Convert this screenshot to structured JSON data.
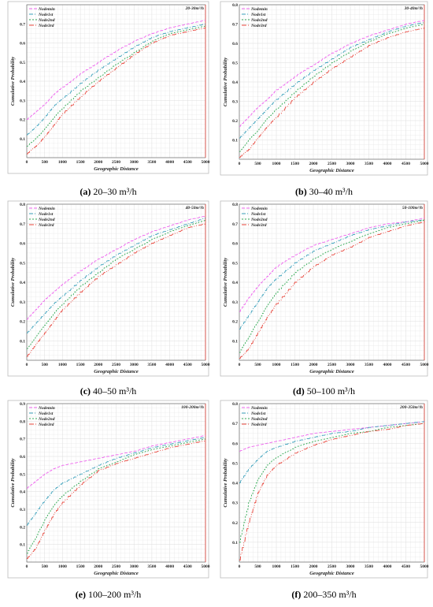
{
  "colors": {
    "Nodemin": "#ee66ee",
    "Node1st": "#3aa0bb",
    "Node2nd": "#33aa55",
    "Node3rd": "#e8443a",
    "grid": "#dddddd"
  },
  "chart_data": [
    {
      "type": "line",
      "title": "20-30m³/h",
      "caption_bold": "(a)",
      "caption_rest": " 20–30 m³/h",
      "xlabel": "Geographic Distance",
      "ylabel": "Cumulative Probability",
      "xlim": [
        0,
        5000
      ],
      "ylim": [
        0,
        0.8
      ],
      "xticks": [
        "0",
        "500",
        "1000",
        "1500",
        "2000",
        "2500",
        "3000",
        "3500",
        "4000",
        "4500",
        "5000"
      ],
      "yticks": [
        "0.1",
        "0.2",
        "0.3",
        "0.4",
        "0.5",
        "0.6",
        "0.7"
      ],
      "legend_position": "top-left",
      "grid": true,
      "x": [
        0,
        250,
        500,
        750,
        1000,
        1500,
        2000,
        2500,
        3000,
        3500,
        4000,
        4500,
        5000
      ],
      "series": [
        {
          "name": "Nodemin",
          "values": [
            0.2,
            0.24,
            0.28,
            0.33,
            0.37,
            0.44,
            0.5,
            0.56,
            0.61,
            0.65,
            0.68,
            0.7,
            0.72
          ]
        },
        {
          "name": "Node1st",
          "values": [
            0.12,
            0.16,
            0.21,
            0.27,
            0.31,
            0.39,
            0.46,
            0.52,
            0.58,
            0.63,
            0.66,
            0.68,
            0.7
          ]
        },
        {
          "name": "Node2nd",
          "values": [
            0.06,
            0.1,
            0.15,
            0.21,
            0.26,
            0.35,
            0.42,
            0.49,
            0.55,
            0.61,
            0.65,
            0.67,
            0.69
          ]
        },
        {
          "name": "Node3rd",
          "values": [
            0.02,
            0.06,
            0.11,
            0.17,
            0.23,
            0.32,
            0.4,
            0.47,
            0.54,
            0.6,
            0.64,
            0.66,
            0.68
          ]
        }
      ]
    },
    {
      "type": "line",
      "title": "30-40m³/h",
      "caption_bold": "(b)",
      "caption_rest": " 30–40 m³/h",
      "xlabel": "Geographic Distance",
      "ylabel": "Cumulative Probability",
      "xlim": [
        0,
        5000
      ],
      "ylim": [
        0,
        0.8
      ],
      "xticks": [
        "0",
        "500",
        "1000",
        "1500",
        "2000",
        "2500",
        "3000",
        "3500",
        "4000",
        "4500",
        "5000"
      ],
      "yticks": [
        "0.1",
        "0.2",
        "0.3",
        "0.4",
        "0.5",
        "0.6",
        "0.7",
        "0.8"
      ],
      "legend_position": "top-left",
      "grid": true,
      "x": [
        0,
        250,
        500,
        750,
        1000,
        1500,
        2000,
        2500,
        3000,
        3500,
        4000,
        4500,
        5000
      ],
      "series": [
        {
          "name": "Nodemin",
          "values": [
            0.17,
            0.22,
            0.27,
            0.31,
            0.36,
            0.43,
            0.49,
            0.55,
            0.6,
            0.64,
            0.67,
            0.7,
            0.72
          ]
        },
        {
          "name": "Node1st",
          "values": [
            0.11,
            0.16,
            0.21,
            0.26,
            0.31,
            0.39,
            0.46,
            0.52,
            0.58,
            0.62,
            0.66,
            0.69,
            0.71
          ]
        },
        {
          "name": "Node2nd",
          "values": [
            0.04,
            0.1,
            0.15,
            0.21,
            0.26,
            0.35,
            0.43,
            0.5,
            0.56,
            0.61,
            0.65,
            0.68,
            0.7
          ]
        },
        {
          "name": "Node3rd",
          "values": [
            0.01,
            0.05,
            0.11,
            0.17,
            0.22,
            0.32,
            0.4,
            0.47,
            0.53,
            0.59,
            0.63,
            0.66,
            0.68
          ]
        }
      ]
    },
    {
      "type": "line",
      "title": "40-50m³/h",
      "caption_bold": "(c)",
      "caption_rest": " 40–50 m³/h",
      "xlabel": "Geographic Distance",
      "ylabel": "Cumulative Probability",
      "xlim": [
        0,
        5000
      ],
      "ylim": [
        0,
        0.8
      ],
      "xticks": [
        "0",
        "500",
        "1000",
        "1500",
        "2000",
        "2500",
        "3000",
        "3500",
        "4000",
        "4500",
        "5000"
      ],
      "yticks": [
        "0.1",
        "0.2",
        "0.3",
        "0.4",
        "0.5",
        "0.6",
        "0.7",
        "0.8"
      ],
      "legend_position": "top-left",
      "grid": true,
      "x": [
        0,
        250,
        500,
        750,
        1000,
        1500,
        2000,
        2500,
        3000,
        3500,
        4000,
        4500,
        5000
      ],
      "series": [
        {
          "name": "Nodemin",
          "values": [
            0.21,
            0.26,
            0.31,
            0.35,
            0.39,
            0.46,
            0.52,
            0.57,
            0.62,
            0.66,
            0.69,
            0.72,
            0.74
          ]
        },
        {
          "name": "Node1st",
          "values": [
            0.14,
            0.19,
            0.24,
            0.29,
            0.33,
            0.41,
            0.48,
            0.54,
            0.59,
            0.64,
            0.67,
            0.7,
            0.73
          ]
        },
        {
          "name": "Node2nd",
          "values": [
            0.06,
            0.12,
            0.18,
            0.24,
            0.29,
            0.38,
            0.45,
            0.52,
            0.57,
            0.62,
            0.66,
            0.69,
            0.72
          ]
        },
        {
          "name": "Node3rd",
          "values": [
            0.02,
            0.08,
            0.14,
            0.2,
            0.26,
            0.35,
            0.43,
            0.49,
            0.55,
            0.6,
            0.64,
            0.68,
            0.7
          ]
        }
      ]
    },
    {
      "type": "line",
      "title": "50-100m³/h",
      "caption_bold": "(d)",
      "caption_rest": " 50–100 m³/h",
      "xlabel": "Geographic Distance",
      "ylabel": "Cumulative Probability",
      "xlim": [
        0,
        5000
      ],
      "ylim": [
        0,
        0.8
      ],
      "xticks": [
        "0",
        "500",
        "1000",
        "1500",
        "2000",
        "2500",
        "3000",
        "3500",
        "4000",
        "4500",
        "5000"
      ],
      "yticks": [
        "0.1",
        "0.2",
        "0.3",
        "0.4",
        "0.5",
        "0.6",
        "0.7",
        "0.8"
      ],
      "legend_position": "top-left",
      "grid": true,
      "x": [
        0,
        250,
        500,
        750,
        1000,
        1500,
        2000,
        2500,
        3000,
        3500,
        4000,
        4500,
        5000
      ],
      "series": [
        {
          "name": "Nodemin",
          "values": [
            0.25,
            0.32,
            0.38,
            0.43,
            0.48,
            0.54,
            0.59,
            0.62,
            0.65,
            0.68,
            0.7,
            0.71,
            0.73
          ]
        },
        {
          "name": "Node1st",
          "values": [
            0.16,
            0.23,
            0.3,
            0.37,
            0.42,
            0.5,
            0.56,
            0.6,
            0.64,
            0.67,
            0.69,
            0.71,
            0.72
          ]
        },
        {
          "name": "Node2nd",
          "values": [
            0.04,
            0.12,
            0.2,
            0.28,
            0.35,
            0.45,
            0.52,
            0.57,
            0.61,
            0.65,
            0.68,
            0.7,
            0.72
          ]
        },
        {
          "name": "Node3rd",
          "values": [
            0.01,
            0.06,
            0.14,
            0.22,
            0.29,
            0.4,
            0.48,
            0.54,
            0.58,
            0.63,
            0.66,
            0.69,
            0.71
          ]
        }
      ]
    },
    {
      "type": "line",
      "title": "100-200m³/h",
      "caption_bold": "(e)",
      "caption_rest": " 100–200 m³/h",
      "xlabel": "Geographic Distance",
      "ylabel": "Cumulative Probability",
      "xlim": [
        0,
        5000
      ],
      "ylim": [
        0,
        0.9
      ],
      "xticks": [
        "0",
        "500",
        "1000",
        "1500",
        "2000",
        "2500",
        "3000",
        "3500",
        "4000",
        "4500",
        "5000"
      ],
      "yticks": [
        "0.1",
        "0.2",
        "0.3",
        "0.4",
        "0.5",
        "0.6",
        "0.7",
        "0.8",
        "0.9"
      ],
      "legend_position": "top-left",
      "grid": true,
      "x": [
        0,
        250,
        500,
        750,
        1000,
        1500,
        2000,
        2500,
        3000,
        3500,
        4000,
        4500,
        5000
      ],
      "series": [
        {
          "name": "Nodemin",
          "values": [
            0.42,
            0.46,
            0.5,
            0.53,
            0.55,
            0.57,
            0.59,
            0.61,
            0.63,
            0.66,
            0.68,
            0.7,
            0.72
          ]
        },
        {
          "name": "Node1st",
          "values": [
            0.21,
            0.28,
            0.35,
            0.41,
            0.45,
            0.5,
            0.55,
            0.59,
            0.62,
            0.65,
            0.67,
            0.69,
            0.71
          ]
        },
        {
          "name": "Node2nd",
          "values": [
            0.05,
            0.14,
            0.24,
            0.32,
            0.38,
            0.46,
            0.53,
            0.57,
            0.61,
            0.64,
            0.66,
            0.68,
            0.7
          ]
        },
        {
          "name": "Node3rd",
          "values": [
            0.02,
            0.08,
            0.18,
            0.27,
            0.34,
            0.44,
            0.52,
            0.56,
            0.59,
            0.62,
            0.65,
            0.67,
            0.69
          ]
        }
      ]
    },
    {
      "type": "line",
      "title": "200-350m³/h",
      "caption_bold": "(f)",
      "caption_rest": " 200–350 m³/h",
      "xlabel": "Geographic Distance",
      "ylabel": "Cumulative Probability",
      "xlim": [
        0,
        5000
      ],
      "ylim": [
        0,
        0.8
      ],
      "xticks": [
        "0",
        "500",
        "1000",
        "1500",
        "2000",
        "2500",
        "3000",
        "3500",
        "4000",
        "4500",
        "5000"
      ],
      "yticks": [
        "0.1",
        "0.2",
        "0.3",
        "0.4",
        "0.5",
        "0.6",
        "0.7",
        "0.8"
      ],
      "legend_position": "top-left",
      "grid": true,
      "x": [
        0,
        250,
        500,
        750,
        1000,
        1500,
        2000,
        2500,
        3000,
        3500,
        4000,
        4500,
        5000
      ],
      "series": [
        {
          "name": "Nodemin",
          "values": [
            0.56,
            0.58,
            0.59,
            0.6,
            0.61,
            0.63,
            0.65,
            0.66,
            0.67,
            0.68,
            0.69,
            0.7,
            0.71
          ]
        },
        {
          "name": "Node1st",
          "values": [
            0.4,
            0.47,
            0.52,
            0.56,
            0.58,
            0.61,
            0.63,
            0.65,
            0.66,
            0.68,
            0.69,
            0.7,
            0.71
          ]
        },
        {
          "name": "Node2nd",
          "values": [
            0.1,
            0.3,
            0.42,
            0.49,
            0.53,
            0.58,
            0.61,
            0.63,
            0.65,
            0.66,
            0.68,
            0.69,
            0.7
          ]
        },
        {
          "name": "Node3rd",
          "values": [
            0.01,
            0.2,
            0.35,
            0.44,
            0.49,
            0.55,
            0.59,
            0.62,
            0.64,
            0.66,
            0.67,
            0.69,
            0.7
          ]
        }
      ]
    }
  ]
}
